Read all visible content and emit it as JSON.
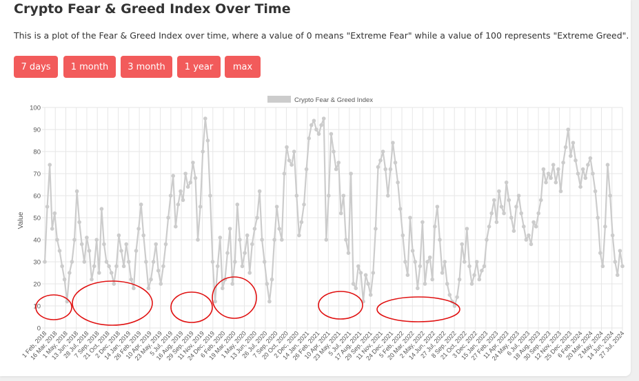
{
  "page": {
    "title": "Crypto Fear & Greed Index Over Time",
    "description": "This is a plot of the Fear & Greed Index over time, where a value of 0 means \"Extreme Fear\" while a value of 100 represents \"Extreme Greed\"."
  },
  "buttons": [
    {
      "id": "7d",
      "label": "7 days"
    },
    {
      "id": "1m",
      "label": "1 month"
    },
    {
      "id": "3m",
      "label": "3 month"
    },
    {
      "id": "1y",
      "label": "1 year"
    },
    {
      "id": "max",
      "label": "max"
    }
  ],
  "colors": {
    "accent_button": "#f25b5b",
    "series": "#cccccc",
    "grid": "#e6e6e6",
    "annotation": "#e01010"
  },
  "chart_data": {
    "type": "line",
    "title": "",
    "xlabel": "",
    "ylabel": "Value",
    "ylim": [
      0,
      100
    ],
    "yticks": [
      0,
      10,
      20,
      30,
      40,
      50,
      60,
      70,
      80,
      90,
      100
    ],
    "grid": true,
    "legend": "top-center",
    "x_tick_labels": [
      "1 Feb, 2018",
      "16 Mar, 2018",
      "1 May, 2018",
      "13 Jun, 2018",
      "28 Jul, 2018",
      "7 Sep, 2018",
      "21 Oct, 2018",
      "2 Dec, 2018",
      "14 Jan, 2019",
      "26 Feb, 2019",
      "10 Apr, 2019",
      "23 May, 2019",
      "5 Jul, 2019",
      "16 Aug, 2019",
      "29 Sep, 2019",
      "11 Nov, 2019",
      "24 Dec, 2019",
      "6 Feb, 2020",
      "19 Mar, 2020",
      "1 May, 2020",
      "13 Jun, 2020",
      "26 Jul, 2020",
      "7 Sep, 2020",
      "20 Oct, 2020",
      "2 Dec, 2020",
      "14 Jan, 2021",
      "26 Feb, 2021",
      "10 Apr, 2021",
      "23 May, 2021",
      "5 Jul, 2021",
      "17 Aug, 2021",
      "29 Sep, 2021",
      "11 Nov, 2021",
      "24 Dec, 2021",
      "5 Feb, 2022",
      "20 Mar, 2022",
      "2 May, 2022",
      "14 Jun, 2022",
      "27 Jul, 2022",
      "8 Sep, 2022",
      "21 Oct, 2022",
      "3 Dec, 2022",
      "15 Jan, 2023",
      "27 Feb, 2023",
      "11 Apr, 2023",
      "24 May, 2023",
      "6 Jul, 2023",
      "18 Aug, 2023",
      "30 Sep, 2023",
      "12 Nov, 2023",
      "25 Dec, 2023",
      "6 Feb, 2024",
      "20 Mar, 2024",
      "2 May, 2024",
      "14 Jun, 2024",
      "27 Jul, 2024"
    ],
    "series": [
      {
        "name": "Crypto Fear & Greed Index",
        "values": [
          30,
          55,
          74,
          45,
          52,
          40,
          35,
          28,
          22,
          12,
          25,
          30,
          40,
          62,
          48,
          38,
          30,
          41,
          35,
          22,
          28,
          40,
          25,
          54,
          38,
          30,
          28,
          25,
          20,
          28,
          42,
          35,
          28,
          38,
          30,
          22,
          18,
          35,
          45,
          56,
          42,
          30,
          18,
          22,
          30,
          38,
          26,
          20,
          28,
          38,
          50,
          60,
          69,
          46,
          56,
          62,
          58,
          70,
          64,
          66,
          75,
          68,
          40,
          55,
          80,
          95,
          85,
          60,
          30,
          12,
          28,
          41,
          18,
          22,
          34,
          45,
          20,
          30,
          56,
          40,
          28,
          34,
          42,
          25,
          38,
          45,
          50,
          62,
          40,
          30,
          20,
          12,
          22,
          40,
          55,
          45,
          40,
          70,
          82,
          76,
          74,
          80,
          60,
          42,
          48,
          56,
          72,
          86,
          92,
          94,
          90,
          88,
          92,
          95,
          40,
          60,
          88,
          80,
          72,
          75,
          52,
          60,
          40,
          34,
          70,
          20,
          18,
          28,
          25,
          12,
          24,
          20,
          15,
          25,
          45,
          73,
          76,
          80,
          72,
          60,
          72,
          84,
          75,
          66,
          54,
          42,
          30,
          24,
          50,
          35,
          30,
          18,
          28,
          48,
          20,
          30,
          32,
          22,
          46,
          55,
          40,
          25,
          30,
          20,
          15,
          12,
          10,
          14,
          22,
          38,
          30,
          45,
          28,
          20,
          24,
          30,
          22,
          26,
          28,
          40,
          46,
          52,
          58,
          48,
          62,
          55,
          52,
          66,
          58,
          50,
          44,
          55,
          60,
          52,
          46,
          40,
          42,
          38,
          48,
          46,
          52,
          58,
          72,
          66,
          70,
          68,
          74,
          66,
          72,
          62,
          75,
          82,
          90,
          78,
          84,
          76,
          70,
          64,
          72,
          68,
          74,
          77,
          70,
          62,
          50,
          34,
          28,
          46,
          74,
          60,
          42,
          30,
          24,
          35,
          28
        ]
      }
    ],
    "annotations": "red hand-drawn circles around the extreme-fear lows"
  }
}
